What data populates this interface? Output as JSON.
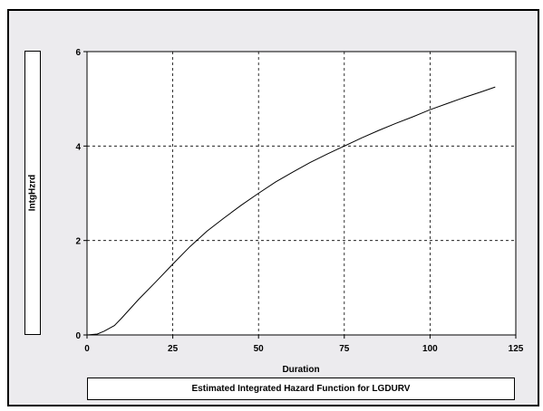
{
  "chart_data": {
    "type": "line",
    "title": "Estimated Integrated Hazard Function for LGDURV",
    "xlabel": "Duration",
    "ylabel": "IntgHzrd",
    "xlim": [
      0,
      125
    ],
    "ylim": [
      0,
      6
    ],
    "x_ticks": [
      "0",
      "25",
      "50",
      "75",
      "100",
      "125"
    ],
    "y_ticks": [
      "0",
      "2",
      "4",
      "6"
    ],
    "grid": true,
    "grid_style": "dashed",
    "series": [
      {
        "color": "#000000",
        "x": [
          0,
          3,
          5,
          8,
          10,
          15,
          20,
          25,
          30,
          35,
          40,
          45,
          50,
          55,
          60,
          65,
          70,
          75,
          80,
          85,
          90,
          95,
          100,
          105,
          110,
          115,
          119
        ],
        "y": [
          0,
          0.02,
          0.08,
          0.2,
          0.35,
          0.75,
          1.12,
          1.5,
          1.87,
          2.2,
          2.48,
          2.75,
          3.0,
          3.24,
          3.45,
          3.65,
          3.83,
          4.0,
          4.17,
          4.33,
          4.48,
          4.62,
          4.77,
          4.9,
          5.03,
          5.15,
          5.25
        ]
      }
    ]
  }
}
